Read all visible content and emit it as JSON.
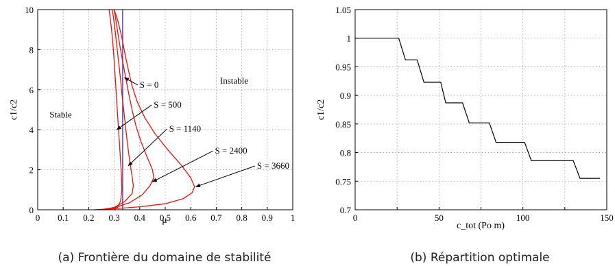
{
  "chart_data": [
    {
      "type": "line",
      "caption": "(a)  Frontière du domaine de stabilité",
      "xlabel": "μ",
      "ylabel": "c1/c2",
      "xlim": [
        0,
        1
      ],
      "ylim": [
        0,
        10
      ],
      "xticks": [
        "0",
        "0.1",
        "0.2",
        "0.3",
        "0.4",
        "0.5",
        "0.6",
        "0.7",
        "0.8",
        "0.9",
        "1"
      ],
      "yticks": [
        "0",
        "2",
        "4",
        "6",
        "8",
        "10"
      ],
      "grid": true,
      "colors": {
        "curves": "#e8120c",
        "vertical": "#4b2fa8"
      },
      "region_labels": [
        "Stable",
        "Instable"
      ],
      "series": [
        {
          "label": "S = 0",
          "x": [
            0.333,
            0.333
          ],
          "y": [
            0,
            10
          ]
        },
        {
          "label": "S = 500",
          "x": [
            0.3,
            0.315,
            0.325,
            0.33,
            0.328,
            0.323,
            0.318,
            0.313,
            0.308,
            0.304,
            0.3,
            0.296,
            0.292,
            0.288,
            0.284,
            0.28
          ],
          "y": [
            0,
            0.15,
            0.45,
            1.0,
            1.8,
            2.8,
            3.8,
            4.8,
            5.8,
            6.6,
            7.4,
            8.1,
            8.7,
            9.2,
            9.6,
            10
          ]
        },
        {
          "label": "S = 1140",
          "x": [
            0.25,
            0.3,
            0.34,
            0.37,
            0.375,
            0.37,
            0.36,
            0.352,
            0.345,
            0.338,
            0.331,
            0.325,
            0.318,
            0.311,
            0.304,
            0.297,
            0.292
          ],
          "y": [
            0,
            0.12,
            0.4,
            0.8,
            1.2,
            1.7,
            2.5,
            3.3,
            4.1,
            4.9,
            5.7,
            6.5,
            7.3,
            8.1,
            8.9,
            9.6,
            10
          ]
        },
        {
          "label": "S = 2400",
          "x": [
            0.24,
            0.3,
            0.36,
            0.41,
            0.44,
            0.455,
            0.45,
            0.43,
            0.405,
            0.385,
            0.37,
            0.357,
            0.345,
            0.333,
            0.322,
            0.311,
            0.3
          ],
          "y": [
            0,
            0.1,
            0.35,
            0.75,
            1.2,
            1.6,
            2.0,
            2.6,
            3.4,
            4.2,
            5.0,
            5.8,
            6.6,
            7.4,
            8.2,
            9.1,
            10
          ]
        },
        {
          "label": "S = 3660",
          "x": [
            0.22,
            0.3,
            0.4,
            0.5,
            0.57,
            0.605,
            0.615,
            0.6,
            0.565,
            0.51,
            0.46,
            0.42,
            0.39,
            0.37,
            0.355,
            0.342,
            0.33,
            0.315,
            0.3
          ],
          "y": [
            0,
            0.05,
            0.15,
            0.3,
            0.55,
            0.85,
            1.15,
            1.6,
            2.2,
            3.0,
            3.8,
            4.6,
            5.4,
            6.2,
            7.0,
            7.8,
            8.6,
            9.4,
            10
          ]
        }
      ],
      "annotations": [
        {
          "text": "S = 0",
          "x": 0.4,
          "y": 6.1,
          "target_x": 0.34,
          "target_y": 6.6
        },
        {
          "text": "S = 500",
          "x": 0.455,
          "y": 5.1,
          "target_x": 0.31,
          "target_y": 4.0
        },
        {
          "text": "S = 1140",
          "x": 0.515,
          "y": 3.9,
          "target_x": 0.355,
          "target_y": 2.2
        },
        {
          "text": "S = 2400",
          "x": 0.695,
          "y": 2.8,
          "target_x": 0.45,
          "target_y": 1.4
        },
        {
          "text": "S = 3660",
          "x": 0.86,
          "y": 2.05,
          "target_x": 0.62,
          "target_y": 1.15
        },
        {
          "text": "Stable",
          "x": 0.09,
          "y": 4.6
        },
        {
          "text": "Instable",
          "x": 0.77,
          "y": 6.3
        }
      ]
    },
    {
      "type": "line",
      "caption": "(b)  Répartition optimale",
      "xlabel": "c_tot (Po m)",
      "ylabel": "c1/c2",
      "xlim": [
        0,
        150
      ],
      "ylim": [
        0.7,
        1.05
      ],
      "xticks": [
        "0",
        "50",
        "100",
        "150"
      ],
      "yticks": [
        "0.7",
        "0.75",
        "0.8",
        "0.85",
        "0.9",
        "0.95",
        "1",
        "1.05"
      ],
      "grid": true,
      "series": [
        {
          "name": "",
          "x": [
            0,
            26,
            30,
            37,
            41,
            51,
            54,
            64,
            68,
            80,
            84,
            101,
            105,
            130,
            134,
            146
          ],
          "y": [
            1.0,
            1.0,
            0.962,
            0.962,
            0.923,
            0.923,
            0.887,
            0.887,
            0.852,
            0.852,
            0.818,
            0.818,
            0.786,
            0.786,
            0.755,
            0.755
          ]
        }
      ]
    }
  ]
}
